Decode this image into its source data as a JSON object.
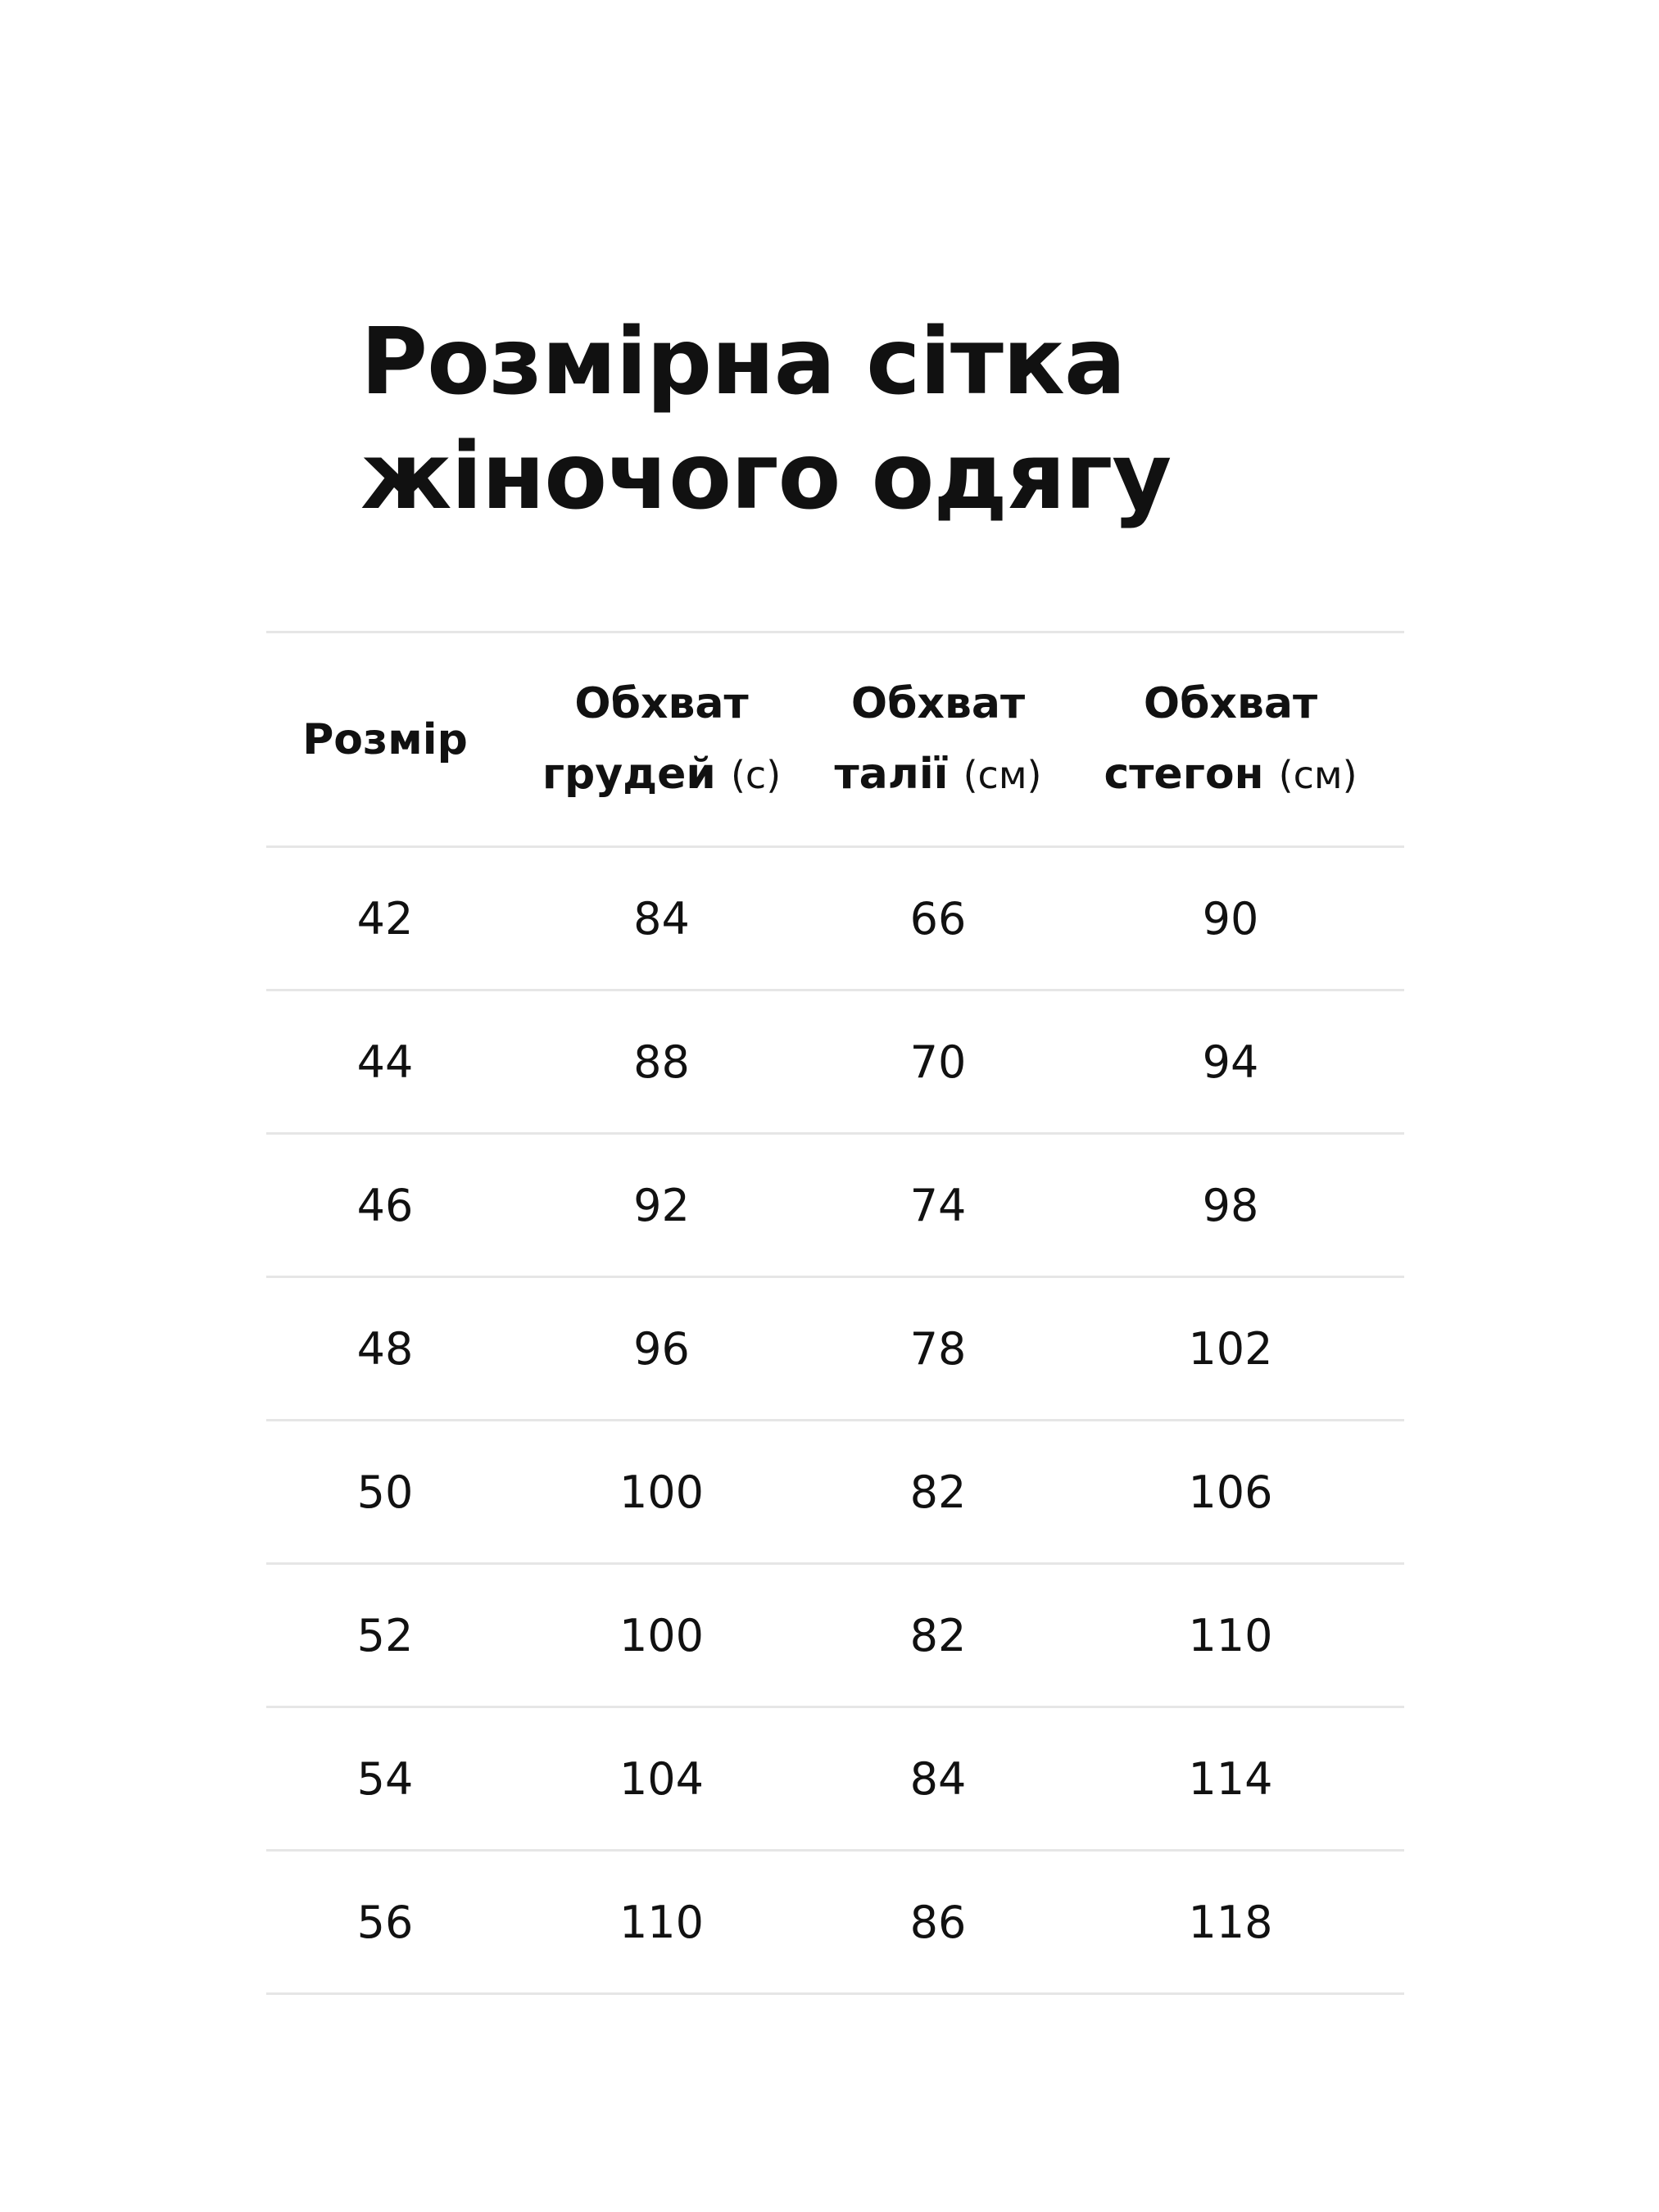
{
  "title": {
    "line1": "Розмірна сітка",
    "line2": "жіночого одягу"
  },
  "table": {
    "headers": [
      {
        "main": "Розмір",
        "sub": "",
        "unit": ""
      },
      {
        "main": "Обхват",
        "sub": "грудей",
        "unit": "(с)"
      },
      {
        "main": "Обхват",
        "sub": "талії",
        "unit": "(см)"
      },
      {
        "main": "Обхват",
        "sub": "стегон",
        "unit": "(см)"
      }
    ],
    "rows": [
      [
        "42",
        "84",
        "66",
        "90"
      ],
      [
        "44",
        "88",
        "70",
        "94"
      ],
      [
        "46",
        "92",
        "74",
        "98"
      ],
      [
        "48",
        "96",
        "78",
        "102"
      ],
      [
        "50",
        "100",
        "82",
        "106"
      ],
      [
        "52",
        "100",
        "82",
        "110"
      ],
      [
        "54",
        "104",
        "84",
        "114"
      ],
      [
        "56",
        "110",
        "86",
        "118"
      ]
    ]
  }
}
